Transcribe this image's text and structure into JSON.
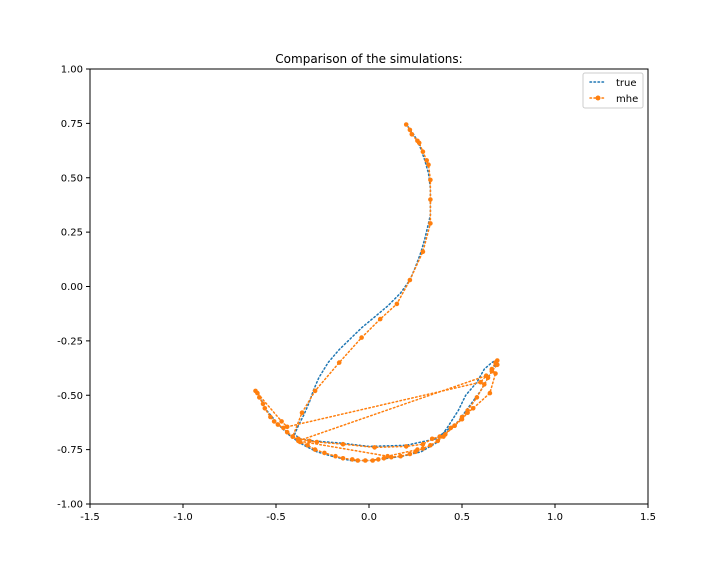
{
  "chart_data": {
    "type": "line",
    "title": "Comparison of the simulations:",
    "xlabel": "",
    "ylabel": "",
    "xlim": [
      -1.5,
      1.5
    ],
    "ylim": [
      -1.0,
      1.0
    ],
    "xticks": [
      "-1.5",
      "-1.0",
      "-0.5",
      "0.0",
      "0.5",
      "1.0",
      "1.5"
    ],
    "yticks": [
      "-1.00",
      "-0.75",
      "-0.50",
      "-0.25",
      "0.00",
      "0.25",
      "0.50",
      "0.75",
      "1.00"
    ],
    "grid": false,
    "legend_position": "top-right",
    "series": [
      {
        "name": "true",
        "color": "#1f77b4",
        "style": "dotted",
        "marker": "none",
        "points": [
          [
            0.2,
            0.75
          ],
          [
            0.22,
            0.72
          ],
          [
            0.24,
            0.7
          ],
          [
            0.26,
            0.67
          ],
          [
            0.28,
            0.63
          ],
          [
            0.3,
            0.58
          ],
          [
            0.32,
            0.52
          ],
          [
            0.33,
            0.45
          ],
          [
            0.33,
            0.4
          ],
          [
            0.33,
            0.33
          ],
          [
            0.32,
            0.29
          ],
          [
            0.3,
            0.22
          ],
          [
            0.28,
            0.16
          ],
          [
            0.25,
            0.09
          ],
          [
            0.22,
            0.03
          ],
          [
            0.17,
            -0.03
          ],
          [
            0.1,
            -0.09
          ],
          [
            0.03,
            -0.14
          ],
          [
            -0.04,
            -0.19
          ],
          [
            -0.1,
            -0.24
          ],
          [
            -0.16,
            -0.29
          ],
          [
            -0.22,
            -0.35
          ],
          [
            -0.27,
            -0.42
          ],
          [
            -0.3,
            -0.48
          ],
          [
            -0.32,
            -0.53
          ],
          [
            -0.35,
            -0.59
          ],
          [
            -0.38,
            -0.64
          ],
          [
            -0.4,
            -0.68
          ],
          [
            -0.37,
            -0.7
          ],
          [
            -0.3,
            -0.71
          ],
          [
            -0.15,
            -0.72
          ],
          [
            0.0,
            -0.735
          ],
          [
            0.2,
            -0.73
          ],
          [
            0.36,
            -0.7
          ],
          [
            0.42,
            -0.66
          ],
          [
            0.48,
            -0.62
          ],
          [
            0.54,
            -0.55
          ],
          [
            0.6,
            -0.48
          ],
          [
            0.64,
            -0.42
          ],
          [
            0.68,
            -0.36
          ],
          [
            0.68,
            -0.34
          ],
          [
            0.66,
            -0.35
          ],
          [
            0.62,
            -0.38
          ],
          [
            0.58,
            -0.44
          ],
          [
            0.52,
            -0.5
          ],
          [
            0.48,
            -0.57
          ],
          [
            0.42,
            -0.65
          ],
          [
            0.36,
            -0.72
          ],
          [
            0.28,
            -0.76
          ],
          [
            0.18,
            -0.78
          ],
          [
            0.1,
            -0.79
          ],
          [
            0.0,
            -0.8
          ],
          [
            -0.1,
            -0.8
          ],
          [
            -0.2,
            -0.78
          ],
          [
            -0.28,
            -0.76
          ],
          [
            -0.35,
            -0.73
          ],
          [
            -0.42,
            -0.69
          ],
          [
            -0.47,
            -0.65
          ],
          [
            -0.51,
            -0.61
          ],
          [
            -0.55,
            -0.57
          ],
          [
            -0.58,
            -0.52
          ],
          [
            -0.6,
            -0.48
          ]
        ]
      },
      {
        "name": "mhe",
        "color": "#ff7f0e",
        "style": "dotted",
        "marker": "circle",
        "points": [
          [
            0.2,
            0.745
          ],
          [
            0.22,
            0.72
          ],
          [
            0.23,
            0.7
          ],
          [
            0.26,
            0.67
          ],
          [
            0.27,
            0.66
          ],
          [
            0.29,
            0.62
          ],
          [
            0.31,
            0.58
          ],
          [
            0.32,
            0.56
          ],
          [
            0.33,
            0.49
          ],
          [
            0.33,
            0.4
          ],
          [
            0.33,
            0.29
          ],
          [
            0.29,
            0.16
          ],
          [
            0.22,
            0.03
          ],
          [
            0.15,
            -0.08
          ],
          [
            0.06,
            -0.15
          ],
          [
            -0.04,
            -0.235
          ],
          [
            -0.16,
            -0.35
          ],
          [
            -0.29,
            -0.48
          ],
          [
            -0.36,
            -0.58
          ],
          [
            -0.41,
            -0.69
          ],
          [
            -0.38,
            -0.7
          ],
          [
            -0.32,
            -0.71
          ],
          [
            -0.28,
            -0.715
          ],
          [
            -0.14,
            -0.725
          ],
          [
            0.03,
            -0.74
          ],
          [
            0.2,
            -0.735
          ],
          [
            0.29,
            -0.725
          ],
          [
            0.34,
            -0.7
          ],
          [
            0.38,
            -0.69
          ],
          [
            0.41,
            -0.68
          ],
          [
            0.46,
            -0.64
          ],
          [
            0.5,
            -0.6
          ],
          [
            0.53,
            -0.57
          ],
          [
            0.58,
            -0.51
          ],
          [
            0.62,
            -0.45
          ],
          [
            0.64,
            -0.42
          ],
          [
            0.66,
            -0.39
          ],
          [
            0.69,
            -0.36
          ],
          [
            0.69,
            -0.34
          ],
          [
            0.68,
            -0.35
          ],
          [
            0.66,
            -0.38
          ],
          [
            0.68,
            -0.4
          ],
          [
            0.65,
            -0.49
          ],
          [
            0.56,
            -0.56
          ],
          [
            0.53,
            -0.58
          ],
          [
            0.5,
            -0.61
          ],
          [
            0.46,
            -0.64
          ],
          [
            0.44,
            -0.65
          ],
          [
            0.4,
            -0.69
          ],
          [
            0.37,
            -0.71
          ],
          [
            0.33,
            -0.73
          ],
          [
            0.29,
            -0.745
          ],
          [
            0.25,
            -0.76
          ],
          [
            0.22,
            -0.77
          ],
          [
            0.17,
            -0.78
          ],
          [
            0.12,
            -0.785
          ],
          [
            0.08,
            -0.79
          ],
          [
            0.05,
            -0.795
          ],
          [
            0.02,
            -0.8
          ],
          [
            -0.02,
            -0.8
          ],
          [
            -0.06,
            -0.8
          ],
          [
            -0.09,
            -0.795
          ],
          [
            -0.14,
            -0.79
          ],
          [
            -0.18,
            -0.78
          ],
          [
            -0.24,
            -0.765
          ],
          [
            -0.29,
            -0.75
          ],
          [
            -0.33,
            -0.73
          ],
          [
            -0.37,
            -0.715
          ],
          [
            -0.41,
            -0.69
          ],
          [
            -0.44,
            -0.67
          ],
          [
            -0.46,
            -0.65
          ],
          [
            -0.49,
            -0.635
          ],
          [
            -0.51,
            -0.62
          ],
          [
            -0.53,
            -0.6
          ],
          [
            -0.56,
            -0.56
          ],
          [
            -0.57,
            -0.54
          ],
          [
            -0.59,
            -0.51
          ],
          [
            -0.6,
            -0.49
          ],
          [
            -0.61,
            -0.48
          ],
          [
            -0.47,
            -0.62
          ],
          [
            -0.44,
            -0.645
          ],
          [
            0.6,
            -0.44
          ],
          [
            0.63,
            -0.41
          ],
          [
            -0.38,
            -0.71
          ],
          [
            0.1,
            -0.78
          ],
          [
            0.26,
            -0.75
          ]
        ]
      }
    ]
  }
}
